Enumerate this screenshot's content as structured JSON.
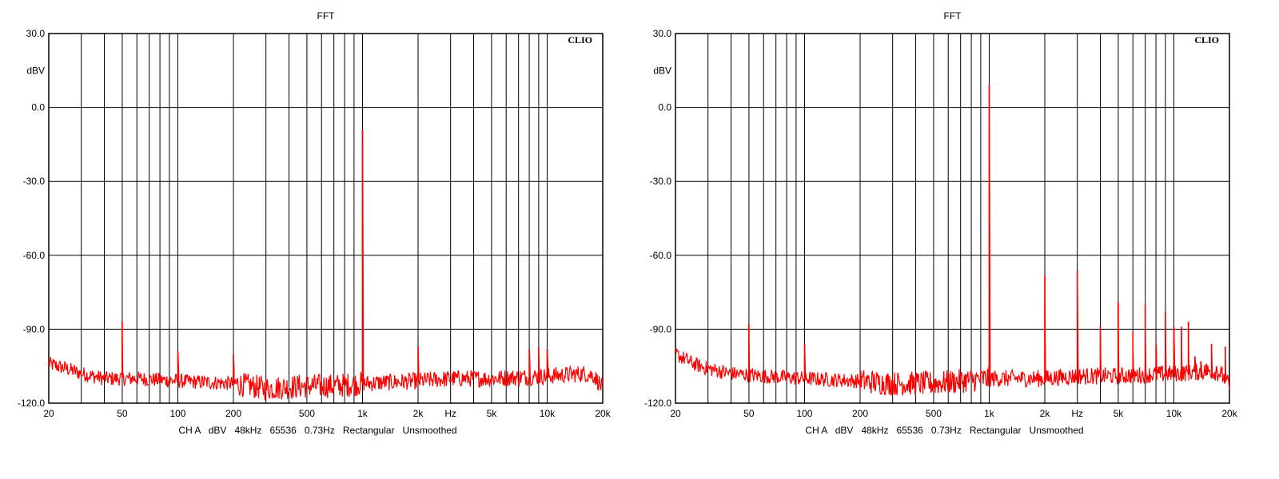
{
  "chart_data": [
    {
      "type": "line",
      "title": "FFT",
      "logo": "CLIO",
      "ylabel": "dBV",
      "xlabel": "Hz",
      "footer": "CH A   dBV   48kHz   65536   0.73Hz   Rectangular   Unsmoothed",
      "x_scale": "log",
      "xlim": [
        20,
        20000
      ],
      "ylim": [
        -120,
        30
      ],
      "grid": true,
      "x_ticks": [
        "20",
        "50",
        "100",
        "200",
        "500",
        "1k",
        "2k",
        "Hz",
        "5k",
        "10k",
        "20k"
      ],
      "y_ticks": [
        "30.0",
        "dBV",
        "0.0",
        "-30.0",
        "-60.0",
        "-90.0",
        "-120.0"
      ],
      "line_color": "#ff0000",
      "series": [
        {
          "noise_floor": [
            [
              20,
              -104
            ],
            [
              25,
              -106
            ],
            [
              30,
              -108
            ],
            [
              40,
              -110
            ],
            [
              60,
              -110
            ],
            [
              100,
              -111
            ],
            [
              200,
              -112
            ],
            [
              300,
              -114
            ],
            [
              500,
              -113
            ],
            [
              700,
              -113
            ],
            [
              1000,
              -112
            ],
            [
              2000,
              -111
            ],
            [
              3000,
              -110
            ],
            [
              5000,
              -110
            ],
            [
              10000,
              -109
            ],
            [
              16000,
              -108
            ],
            [
              18000,
              -109
            ],
            [
              20000,
              -114
            ]
          ],
          "peaks": [
            [
              50,
              -87
            ],
            [
              100,
              -99
            ],
            [
              200,
              -100
            ],
            [
              1000,
              -9
            ],
            [
              2000,
              -97
            ],
            [
              8000,
              -98
            ],
            [
              9000,
              -97
            ],
            [
              10000,
              -98
            ]
          ]
        }
      ]
    },
    {
      "type": "line",
      "title": "FFT",
      "logo": "CLIO",
      "ylabel": "dBV",
      "xlabel": "Hz",
      "footer": "CH A   dBV   48kHz   65536   0.73Hz   Rectangular   Unsmoothed",
      "x_scale": "log",
      "xlim": [
        20,
        20000
      ],
      "ylim": [
        -120,
        30
      ],
      "grid": true,
      "x_ticks": [
        "20",
        "50",
        "100",
        "200",
        "500",
        "1k",
        "2k",
        "Hz",
        "5k",
        "10k",
        "20k"
      ],
      "y_ticks": [
        "30.0",
        "dBV",
        "0.0",
        "-30.0",
        "-60.0",
        "-90.0",
        "-120.0"
      ],
      "line_color": "#ff0000",
      "series": [
        {
          "noise_floor": [
            [
              20,
              -100
            ],
            [
              25,
              -104
            ],
            [
              30,
              -106
            ],
            [
              40,
              -108
            ],
            [
              60,
              -109
            ],
            [
              100,
              -110
            ],
            [
              200,
              -111
            ],
            [
              300,
              -112
            ],
            [
              500,
              -112
            ],
            [
              700,
              -111
            ],
            [
              1000,
              -110
            ],
            [
              2000,
              -110
            ],
            [
              3000,
              -109
            ],
            [
              5000,
              -109
            ],
            [
              10000,
              -108
            ],
            [
              16000,
              -107
            ],
            [
              18000,
              -108
            ],
            [
              20000,
              -113
            ]
          ],
          "peaks": [
            [
              50,
              -88
            ],
            [
              100,
              -96
            ],
            [
              1000,
              9
            ],
            [
              2000,
              -68
            ],
            [
              3000,
              -66
            ],
            [
              4000,
              -89
            ],
            [
              5000,
              -79
            ],
            [
              6000,
              -91
            ],
            [
              7000,
              -80
            ],
            [
              8000,
              -96
            ],
            [
              9000,
              -83
            ],
            [
              10000,
              -89
            ],
            [
              11000,
              -89
            ],
            [
              12000,
              -87
            ],
            [
              13000,
              -101
            ],
            [
              14000,
              -103
            ],
            [
              15000,
              -104
            ],
            [
              16000,
              -96
            ],
            [
              17000,
              -105
            ],
            [
              18000,
              -106
            ],
            [
              19000,
              -97
            ]
          ]
        }
      ]
    }
  ]
}
